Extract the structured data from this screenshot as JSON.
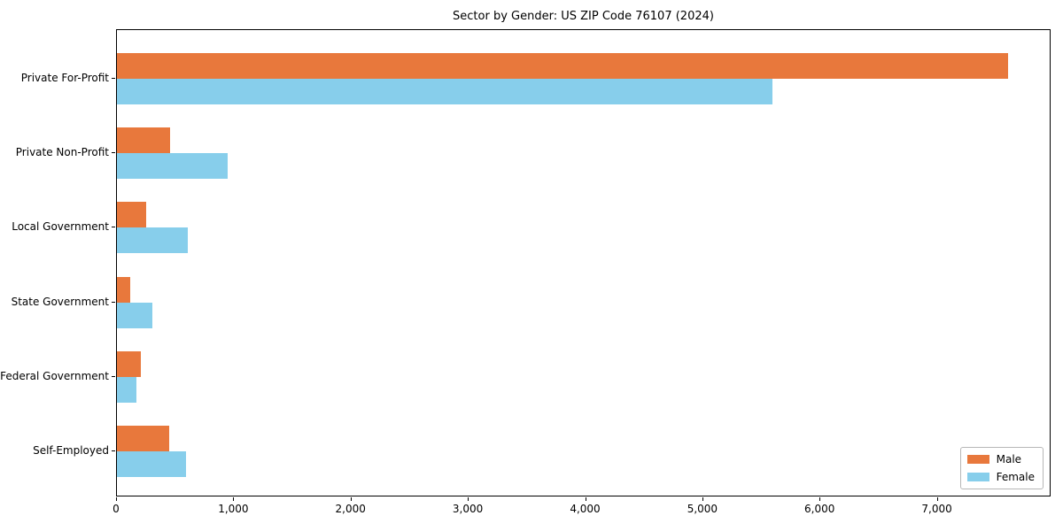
{
  "title": "Sector by Gender: US ZIP Code 76107 (2024)",
  "chart_data": {
    "type": "bar",
    "orientation": "horizontal",
    "title": "Sector by Gender: US ZIP Code 76107 (2024)",
    "xlabel": "",
    "ylabel": "",
    "categories": [
      "Private For-Profit",
      "Private Non-Profit",
      "Local Government",
      "State Government",
      "Federal Government",
      "Self-Employed"
    ],
    "series": [
      {
        "name": "Male",
        "color": "#e8783c",
        "values": [
          7600,
          455,
          250,
          115,
          205,
          445
        ]
      },
      {
        "name": "Female",
        "color": "#87ceeb",
        "values": [
          5590,
          945,
          605,
          305,
          165,
          590
        ]
      }
    ],
    "xlim": [
      0,
      7970
    ],
    "xticks": [
      0,
      1000,
      2000,
      3000,
      4000,
      5000,
      6000,
      7000
    ],
    "xtick_labels": [
      "0",
      "1,000",
      "2,000",
      "3,000",
      "4,000",
      "5,000",
      "6,000",
      "7,000"
    ],
    "grid": false,
    "legend_position": "lower right"
  }
}
